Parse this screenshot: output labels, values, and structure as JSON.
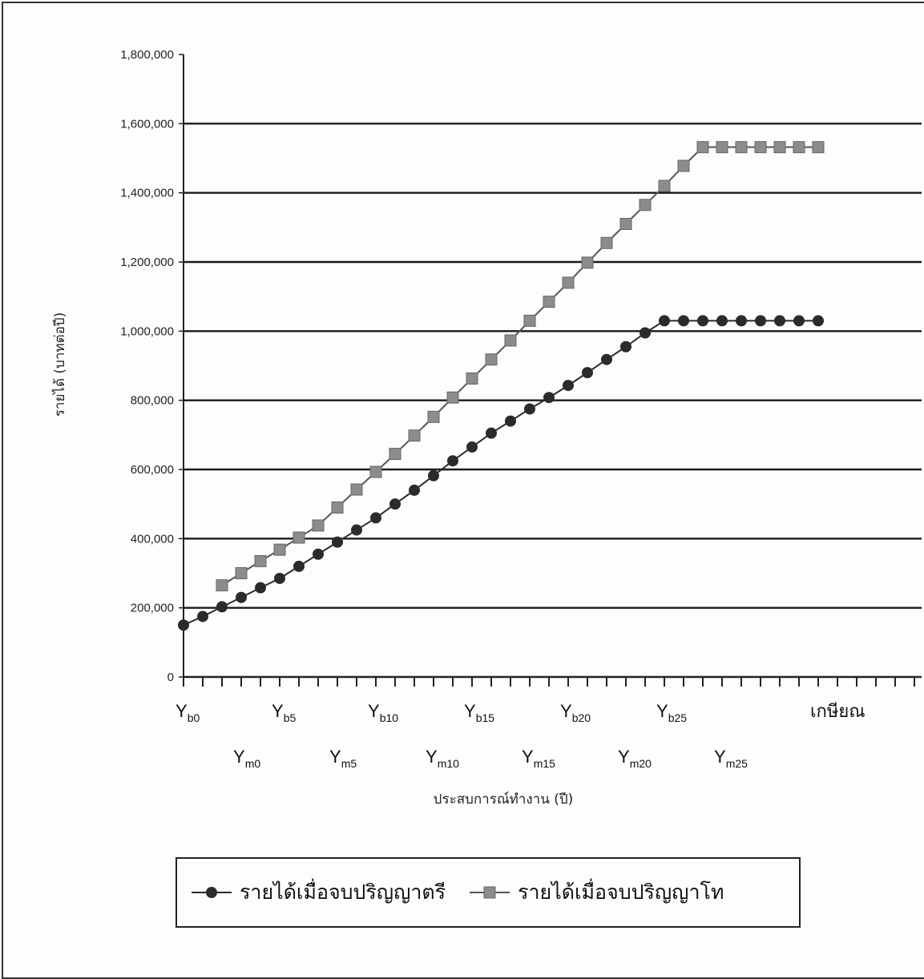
{
  "chart_data": {
    "type": "line",
    "title": "",
    "ylabel": "รายได้ (บาทต่อปี)",
    "xlabel": "ประสบการณ์ทำงาน (ปี)",
    "ylim": [
      0,
      1800000
    ],
    "y_ticks": [
      "0",
      "200,000",
      "400,000",
      "600,000",
      "800,000",
      "1,000,000",
      "1,200,000",
      "1,400,000",
      "1,600,000",
      "1,800,000"
    ],
    "y_tick_values": [
      0,
      200000,
      400000,
      600000,
      800000,
      1000000,
      1200000,
      1400000,
      1600000,
      1800000
    ],
    "grid": true,
    "x_tick_count": 39,
    "x_labels_row1": [
      {
        "main": "Y",
        "sub": "b0",
        "at": 0
      },
      {
        "main": "Y",
        "sub": "b5",
        "at": 5
      },
      {
        "main": "Y",
        "sub": "b10",
        "at": 10
      },
      {
        "main": "Y",
        "sub": "b15",
        "at": 15
      },
      {
        "main": "Y",
        "sub": "b20",
        "at": 20
      },
      {
        "main": "Y",
        "sub": "b25",
        "at": 25
      },
      {
        "main": "เกษียณ",
        "sub": "",
        "at": 33
      }
    ],
    "x_labels_row2": [
      {
        "main": "Y",
        "sub": "m0",
        "at": 3
      },
      {
        "main": "Y",
        "sub": "m5",
        "at": 8
      },
      {
        "main": "Y",
        "sub": "m10",
        "at": 13
      },
      {
        "main": "Y",
        "sub": "m15",
        "at": 18
      },
      {
        "main": "Y",
        "sub": "m20",
        "at": 23
      },
      {
        "main": "Y",
        "sub": "m25",
        "at": 28
      }
    ],
    "legend_position": "bottom",
    "series": [
      {
        "name": "รายได้เมื่อจบปริญญาตรี",
        "marker": "circle",
        "color": "#2b2b2b",
        "x": [
          0,
          1,
          2,
          3,
          4,
          5,
          6,
          7,
          8,
          9,
          10,
          11,
          12,
          13,
          14,
          15,
          16,
          17,
          18,
          19,
          20,
          21,
          22,
          23,
          24,
          25,
          26,
          27,
          28,
          29,
          30,
          31,
          32,
          33
        ],
        "values": [
          150000,
          175000,
          203000,
          230000,
          258000,
          285000,
          320000,
          355000,
          390000,
          425000,
          460000,
          500000,
          540000,
          582000,
          625000,
          665000,
          705000,
          740000,
          775000,
          808000,
          843000,
          880000,
          918000,
          955000,
          995000,
          1030000,
          1030000,
          1030000,
          1030000,
          1030000,
          1030000,
          1030000,
          1030000,
          1030000
        ]
      },
      {
        "name": "รายได้เมื่อจบปริญญาโท",
        "marker": "square",
        "color": "#8c8c8c",
        "x": [
          2,
          3,
          4,
          5,
          6,
          7,
          8,
          9,
          10,
          11,
          12,
          13,
          14,
          15,
          16,
          17,
          18,
          19,
          20,
          21,
          22,
          23,
          24,
          25,
          26,
          27,
          28,
          29,
          30,
          31,
          32,
          33
        ],
        "values": [
          265000,
          300000,
          335000,
          368000,
          403000,
          438000,
          490000,
          542000,
          593000,
          645000,
          698000,
          752000,
          808000,
          863000,
          918000,
          973000,
          1030000,
          1085000,
          1140000,
          1198000,
          1255000,
          1310000,
          1365000,
          1420000,
          1478000,
          1532000,
          1532000,
          1532000,
          1532000,
          1532000,
          1532000,
          1532000
        ]
      }
    ]
  }
}
